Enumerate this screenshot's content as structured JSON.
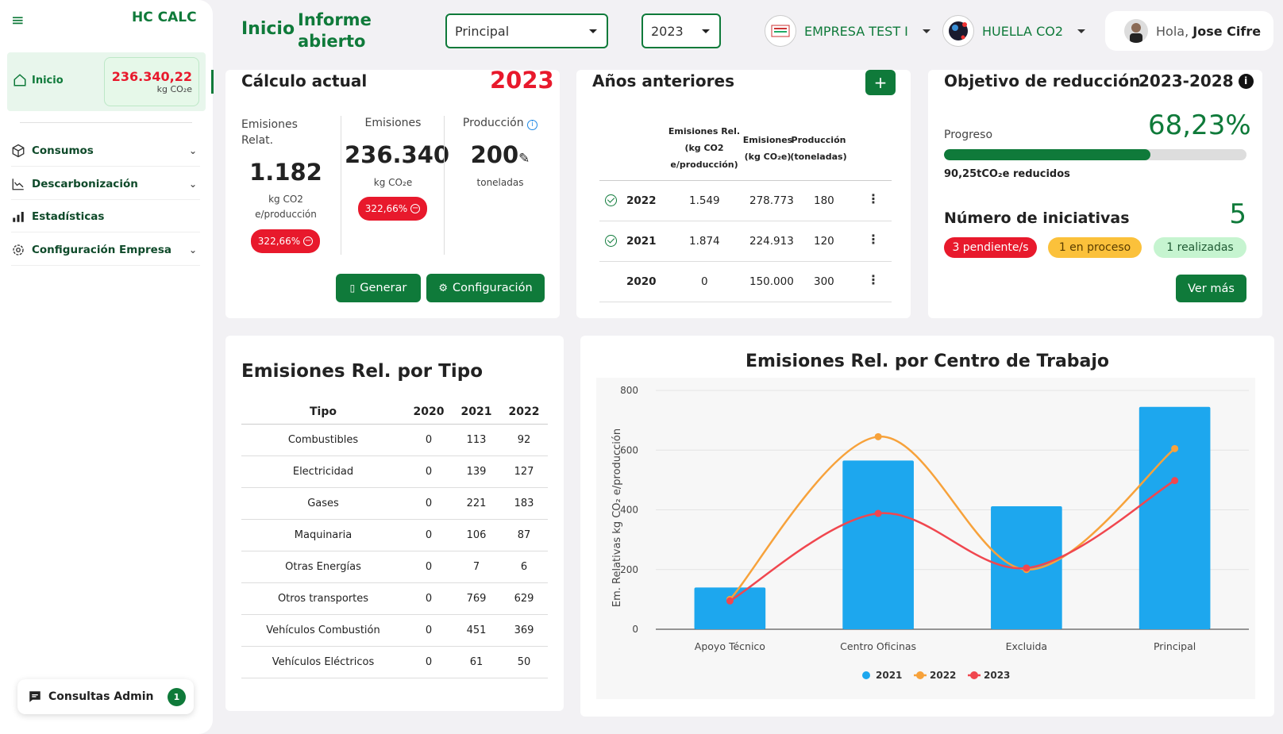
{
  "sidebar": {
    "brand": "HC CALC",
    "home": {
      "label": "Inicio",
      "value": "236.340,22",
      "unit": "kg CO₂e"
    },
    "items": [
      {
        "label": "Consumos",
        "icon": "box-icon",
        "expandable": true
      },
      {
        "label": "Descarbonización",
        "icon": "line-chart-icon",
        "expandable": true
      },
      {
        "label": "Estadísticas",
        "icon": "bar-chart-icon",
        "expandable": false
      },
      {
        "label": "Configuración Empresa",
        "icon": "gear-icon",
        "expandable": true
      }
    ],
    "consultas": {
      "label": "Consultas Admin",
      "count": "1"
    }
  },
  "header": {
    "inicio": "Inicio",
    "informe": "Informe abierto",
    "center_select": "Principal",
    "year_select": "2023",
    "company": "EMPRESA TEST I",
    "module": "HUELLA CO2",
    "greeting": "Hola,",
    "user_name": "Jose Cifre"
  },
  "calculo": {
    "title": "Cálculo actual",
    "year": "2023",
    "m1": {
      "label": "Emisiones Relat.",
      "value": "1.182",
      "unit1": "kg CO2",
      "unit2": "e/producción",
      "pct": "322,66%"
    },
    "m2": {
      "label": "Emisiones",
      "value": "236.340",
      "unit": "kg CO₂e",
      "pct": "322,66%"
    },
    "m3": {
      "label": "Producción",
      "value": "200",
      "unit": "toneladas"
    },
    "btn_generar": "Generar",
    "btn_config": "Configuración"
  },
  "anteriores": {
    "title": "Años anteriores",
    "headers": {
      "rel1": "Emisiones Rel.",
      "rel2": "(kg CO2",
      "rel3": "e/producción)",
      "em1": "Emisiones",
      "em2": "(kg CO₂e)",
      "prod1": "Producción",
      "prod2": "(toneladas)"
    },
    "rows": [
      {
        "year": "2022",
        "rel": "1.549",
        "em": "278.773",
        "prod": "180",
        "checked": true
      },
      {
        "year": "2021",
        "rel": "1.874",
        "em": "224.913",
        "prod": "120",
        "checked": true
      },
      {
        "year": "2020",
        "rel": "0",
        "em": "150.000",
        "prod": "300",
        "checked": false
      }
    ]
  },
  "objetivo": {
    "title": "Objetivo de reducción",
    "years": "2023-2028",
    "progress_label": "Progreso",
    "progress_pct": "68,23%",
    "progress_fraction": 0.6823,
    "reduced": "90,25tCO₂e reducidos",
    "iniciativas_label": "Número de iniciativas",
    "iniciativas_count": "5",
    "badge_pending": "3 pendiente/s",
    "badge_process": "1 en proceso",
    "badge_done": "1 realizadas",
    "btn_more": "Ver más"
  },
  "tipo": {
    "title": "Emisiones Rel. por Tipo",
    "headers": [
      "Tipo",
      "2020",
      "2021",
      "2022"
    ],
    "rows": [
      [
        "Combustibles",
        "0",
        "113",
        "92"
      ],
      [
        "Electricidad",
        "0",
        "139",
        "127"
      ],
      [
        "Gases",
        "0",
        "221",
        "183"
      ],
      [
        "Maquinaria",
        "0",
        "106",
        "87"
      ],
      [
        "Otras Energías",
        "0",
        "7",
        "6"
      ],
      [
        "Otros transportes",
        "0",
        "769",
        "629"
      ],
      [
        "Vehículos Combustión",
        "0",
        "451",
        "369"
      ],
      [
        "Vehículos Eléctricos",
        "0",
        "61",
        "50"
      ]
    ]
  },
  "chart_data": {
    "type": "bar",
    "title": "Emisiones Rel. por Centro de Trabajo",
    "ylabel": "Em. Relativas kg CO₂ e/producción",
    "ylim": [
      0,
      800
    ],
    "yticks": [
      0,
      200,
      400,
      600,
      800
    ],
    "categories": [
      "Apoyo Técnico",
      "Centro Oficinas",
      "Excluida",
      "Principal"
    ],
    "series": [
      {
        "name": "2021",
        "kind": "bar",
        "color": "#1da7ee",
        "values": [
          140,
          565,
          412,
          745
        ]
      },
      {
        "name": "2022",
        "kind": "line",
        "color": "#f7a23b",
        "values": [
          100,
          645,
          200,
          605
        ]
      },
      {
        "name": "2023",
        "kind": "line",
        "color": "#f0474f",
        "values": [
          95,
          388,
          205,
          498
        ]
      }
    ],
    "legend": "bottom"
  }
}
